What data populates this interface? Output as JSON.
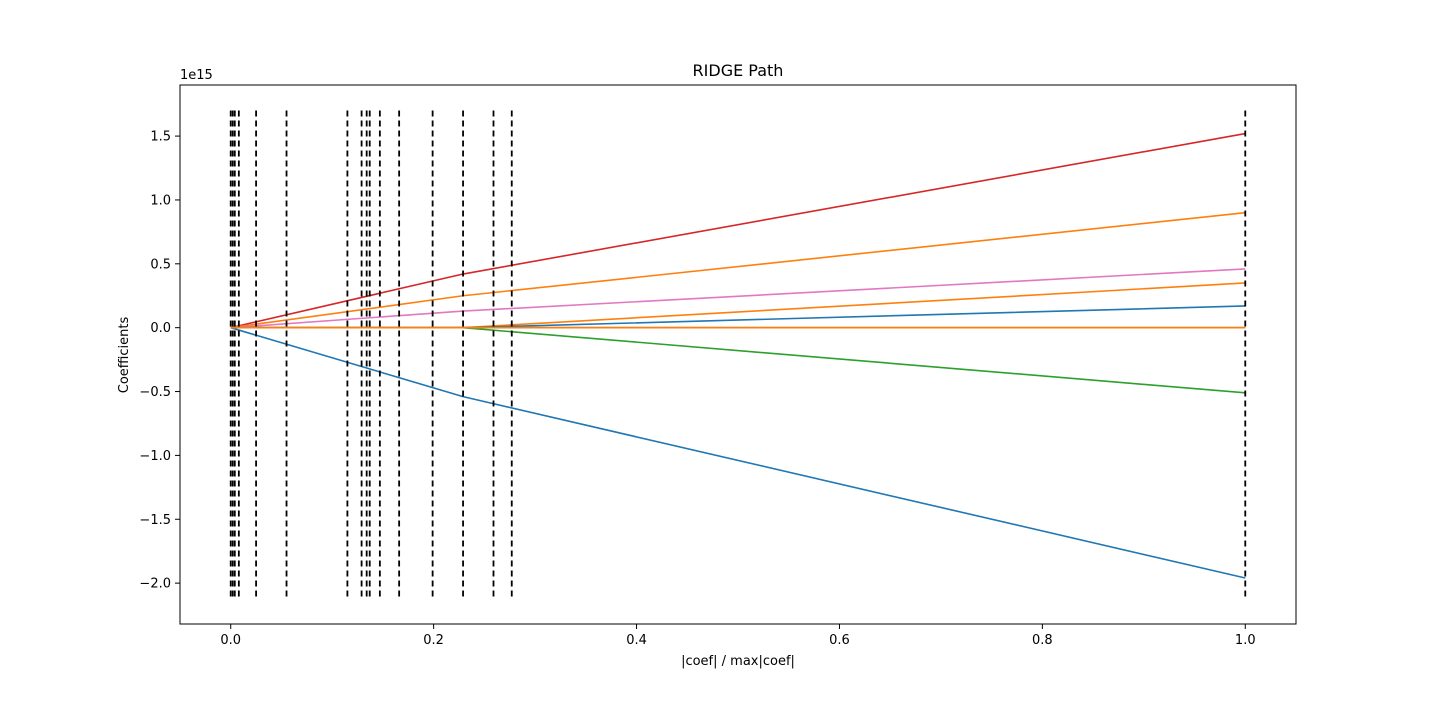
{
  "chart_data": {
    "type": "line",
    "title": "RIDGE Path",
    "xlabel": "|coef| / max|coef|",
    "ylabel": "Coefficients",
    "offset_text": "1e15",
    "xlim": [
      -0.05,
      1.05
    ],
    "ylim": [
      -2.32,
      1.9
    ],
    "xticks": [
      0.0,
      0.2,
      0.4,
      0.6,
      0.8,
      1.0
    ],
    "xtick_labels": [
      "0.0",
      "0.2",
      "0.4",
      "0.6",
      "0.8",
      "1.0"
    ],
    "yticks": [
      1.5,
      1.0,
      0.5,
      0.0,
      -0.5,
      -1.0,
      -1.5,
      -2.0
    ],
    "ytick_labels": [
      "1.5",
      "1.0",
      "0.5",
      "0.0",
      "−0.5",
      "−1.0",
      "−1.5",
      "−2.0"
    ],
    "grid": false,
    "vlines": {
      "style": "dashed",
      "color": "#000000",
      "ymin": -2.12,
      "ymax": 1.7,
      "x": [
        0.0,
        0.002,
        0.004,
        0.008,
        0.025,
        0.055,
        0.115,
        0.129,
        0.134,
        0.137,
        0.147,
        0.166,
        0.199,
        0.229,
        0.259,
        0.277,
        1.0
      ]
    },
    "series": [
      {
        "color": "#d62728",
        "x": [
          0.0,
          0.229,
          1.0
        ],
        "y": [
          0.0,
          0.42,
          1.52
        ]
      },
      {
        "color": "#ff7f0e",
        "x": [
          0.0,
          0.229,
          1.0
        ],
        "y": [
          0.0,
          0.25,
          0.9
        ]
      },
      {
        "color": "#e377c2",
        "x": [
          0.0,
          0.229,
          1.0
        ],
        "y": [
          0.0,
          0.13,
          0.46
        ]
      },
      {
        "color": "#ff7f0e",
        "x": [
          0.0,
          0.229,
          1.0
        ],
        "y": [
          0.0,
          0.0,
          0.35
        ]
      },
      {
        "color": "#1f77b4",
        "x": [
          0.0,
          0.229,
          1.0
        ],
        "y": [
          0.0,
          0.0,
          0.17
        ]
      },
      {
        "color": "#2ca02c",
        "x": [
          0.0,
          0.229,
          1.0
        ],
        "y": [
          0.0,
          0.0,
          -0.51
        ]
      },
      {
        "color": "#1f77b4",
        "x": [
          0.0,
          0.229,
          1.0
        ],
        "y": [
          0.0,
          -0.54,
          -1.96
        ]
      },
      {
        "color": "#bcbd22",
        "x": [
          0.0,
          1.0
        ],
        "y": [
          0.0,
          0.0
        ]
      },
      {
        "color": "#8c564b",
        "x": [
          0.0,
          1.0
        ],
        "y": [
          0.0,
          0.0
        ]
      },
      {
        "color": "#ff7f0e",
        "x": [
          0.0,
          1.0
        ],
        "y": [
          0.0,
          0.0
        ]
      }
    ]
  }
}
